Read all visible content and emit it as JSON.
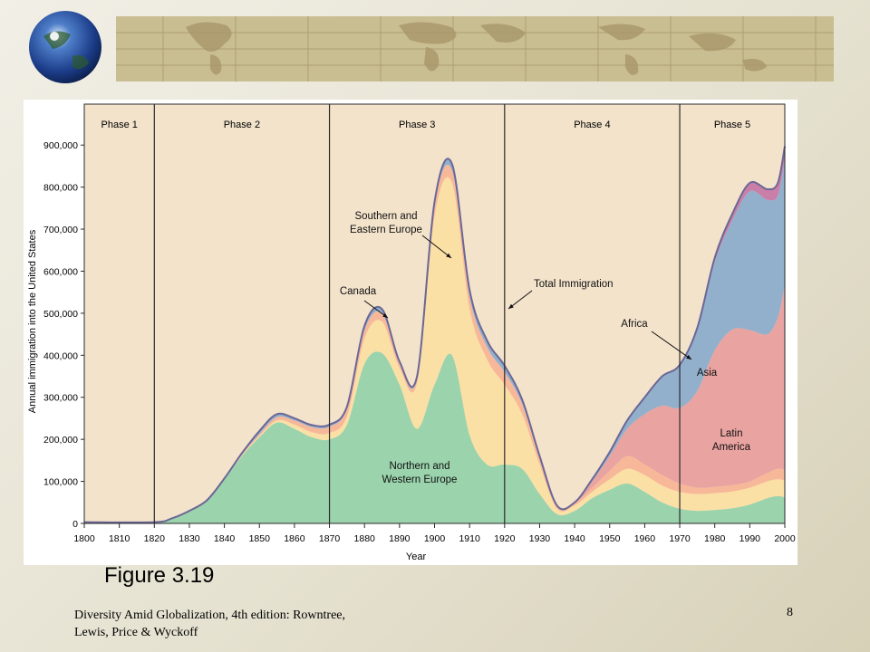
{
  "slide": {
    "figure_caption": "Figure 3.19",
    "source_line1": "Diversity Amid Globalization, 4th edition:  Rowntree,",
    "source_line2": "Lewis, Price & Wyckoff",
    "page_number": "8"
  },
  "banner": {
    "icon": "globe-icon",
    "band_color": "#c9bd92"
  },
  "chart_data": {
    "type": "area",
    "stacked": true,
    "title": "",
    "xlabel": "Year",
    "ylabel": "Annual immigration into the United States",
    "xlim": [
      1800,
      2000
    ],
    "ylim": [
      0,
      950000
    ],
    "xticks": [
      1800,
      1810,
      1820,
      1830,
      1840,
      1850,
      1860,
      1870,
      1880,
      1890,
      1900,
      1910,
      1920,
      1930,
      1940,
      1950,
      1960,
      1970,
      1980,
      1990,
      2000
    ],
    "xtick_labels": [
      "1800",
      "1810",
      "1820",
      "1830",
      "1840",
      "1850",
      "1860",
      "1870",
      "1880",
      "1890",
      "1900",
      "1910",
      "1920",
      "1930",
      "1940",
      "1950",
      "1960",
      "1970",
      "1980",
      "1990",
      "2000"
    ],
    "yticks": [
      0,
      100000,
      200000,
      300000,
      400000,
      500000,
      600000,
      700000,
      800000,
      900000
    ],
    "ytick_labels": [
      "0",
      "100,000",
      "200,000",
      "300,000",
      "400,000",
      "500,000",
      "600,000",
      "700,000",
      "800,000",
      "900,000"
    ],
    "x": [
      1800,
      1820,
      1825,
      1830,
      1835,
      1840,
      1845,
      1850,
      1855,
      1860,
      1865,
      1870,
      1875,
      1880,
      1885,
      1890,
      1895,
      1900,
      1905,
      1910,
      1915,
      1920,
      1925,
      1930,
      1935,
      1940,
      1945,
      1950,
      1955,
      1960,
      1965,
      1970,
      1975,
      1980,
      1985,
      1990,
      1995,
      1998,
      2000
    ],
    "series": [
      {
        "name": "Northern and Western Europe",
        "color": "#9bd3ad",
        "values": [
          3000,
          3000,
          12000,
          30000,
          55000,
          105000,
          160000,
          205000,
          240000,
          225000,
          205000,
          200000,
          235000,
          380000,
          405000,
          330000,
          225000,
          330000,
          400000,
          210000,
          140000,
          140000,
          130000,
          70000,
          22000,
          30000,
          60000,
          80000,
          95000,
          75000,
          50000,
          35000,
          30000,
          32000,
          36000,
          45000,
          60000,
          65000,
          62000
        ]
      },
      {
        "name": "Southern and Eastern Europe",
        "color": "#fbe0a6",
        "values": [
          0,
          0,
          0,
          0,
          0,
          1000,
          2000,
          3000,
          5000,
          10000,
          12000,
          15000,
          20000,
          60000,
          75000,
          40000,
          110000,
          400000,
          410000,
          300000,
          250000,
          190000,
          130000,
          70000,
          13000,
          13000,
          15000,
          25000,
          35000,
          40000,
          40000,
          40000,
          40000,
          40000,
          40000,
          40000,
          40000,
          40000,
          40000
        ]
      },
      {
        "name": "Canada",
        "color": "#f7b89a",
        "values": [
          0,
          0,
          0,
          0,
          0,
          1000,
          2000,
          5000,
          8000,
          10000,
          12000,
          15000,
          18000,
          20000,
          20000,
          10000,
          10000,
          25000,
          30000,
          30000,
          30000,
          30000,
          25000,
          15000,
          5000,
          5000,
          10000,
          20000,
          30000,
          25000,
          25000,
          20000,
          15000,
          15000,
          15000,
          15000,
          20000,
          25000,
          25000
        ]
      },
      {
        "name": "Latin America",
        "color": "#e9a3a1",
        "values": [
          0,
          0,
          0,
          0,
          0,
          0,
          0,
          0,
          0,
          0,
          0,
          0,
          0,
          0,
          0,
          0,
          0,
          0,
          0,
          0,
          0,
          0,
          0,
          0,
          0,
          0,
          15000,
          35000,
          65000,
          120000,
          165000,
          180000,
          230000,
          325000,
          370000,
          360000,
          330000,
          360000,
          440000
        ]
      },
      {
        "name": "Asia",
        "color": "#92b0cc",
        "values": [
          0,
          0,
          0,
          0,
          0,
          0,
          3000,
          7000,
          7000,
          5000,
          5000,
          5000,
          5000,
          10000,
          10000,
          5000,
          5000,
          10000,
          15000,
          15000,
          15000,
          15000,
          10000,
          5000,
          2000,
          2000,
          5000,
          10000,
          20000,
          40000,
          70000,
          100000,
          145000,
          210000,
          260000,
          330000,
          320000,
          290000,
          300000
        ]
      },
      {
        "name": "Africa",
        "color": "#c97fa7",
        "values": [
          0,
          0,
          0,
          0,
          0,
          0,
          0,
          0,
          0,
          0,
          0,
          0,
          0,
          0,
          0,
          0,
          0,
          0,
          0,
          0,
          0,
          0,
          0,
          0,
          0,
          0,
          0,
          0,
          0,
          0,
          0,
          2000,
          5000,
          10000,
          15000,
          20000,
          25000,
          30000,
          30000
        ]
      }
    ],
    "phases": [
      {
        "label": "Phase 1",
        "start": 1800,
        "end": 1820
      },
      {
        "label": "Phase 2",
        "start": 1820,
        "end": 1870
      },
      {
        "label": "Phase 3",
        "start": 1870,
        "end": 1920
      },
      {
        "label": "Phase 4",
        "start": 1920,
        "end": 1970
      },
      {
        "label": "Phase 5",
        "start": 1970,
        "end": 2000
      }
    ],
    "annotations": [
      {
        "text": "Southern and\nEastern Europe",
        "arrow": true
      },
      {
        "text": "Canada",
        "arrow": true
      },
      {
        "text": "Total Immigration",
        "arrow": true
      },
      {
        "text": "Africa",
        "arrow": true
      },
      {
        "text": "Asia",
        "arrow": false
      },
      {
        "text": "Latin\nAmerica",
        "arrow": false
      },
      {
        "text": "Northern and\nWestern Europe",
        "arrow": false
      }
    ],
    "background_color": "#f3e3cb",
    "total_outline_color": "#6b6796",
    "grid": false,
    "legend": "none"
  }
}
